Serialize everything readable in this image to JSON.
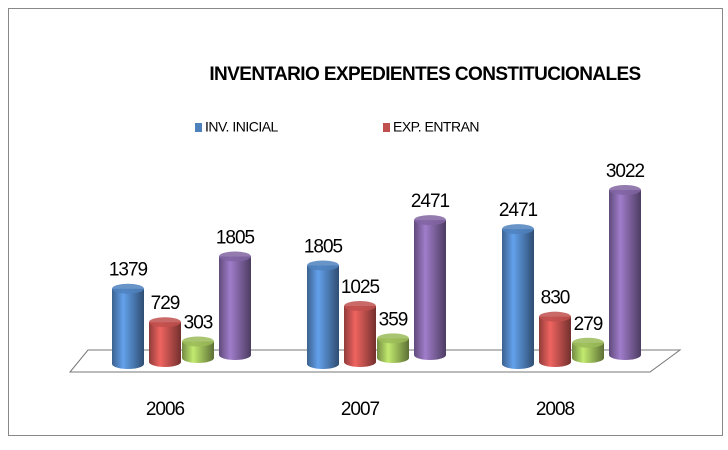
{
  "chart_data": {
    "type": "bar3d",
    "title": "INVENTARIO EXPEDIENTES CONSTITUCIONALES",
    "categories": [
      "2006",
      "2007",
      "2008"
    ],
    "series": [
      {
        "name": "INV. INICIAL",
        "color": "#4f81bd",
        "values": [
          1379,
          1805,
          2471
        ]
      },
      {
        "name": "EXP. ENTRAN",
        "color": "#c0504d",
        "values": [
          729,
          1025,
          830
        ]
      },
      {
        "color": "#9bbb59",
        "values": [
          303,
          359,
          279
        ]
      },
      {
        "color": "#8064a2",
        "values": [
          1805,
          2471,
          3022
        ]
      }
    ]
  }
}
